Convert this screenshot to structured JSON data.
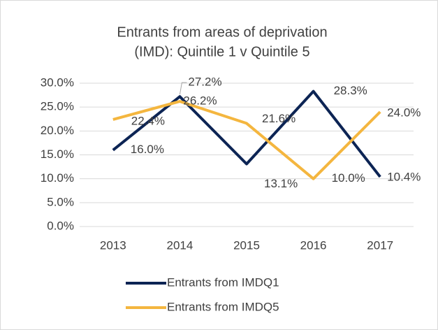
{
  "chart_data": {
    "type": "line",
    "title": [
      "Entrants from areas of deprivation",
      "(IMD): Quintile 1 v Quintile 5"
    ],
    "categories": [
      "2013",
      "2014",
      "2015",
      "2016",
      "2017"
    ],
    "series": [
      {
        "name": "Entrants from IMDQ1",
        "color": "#0c2454",
        "values": [
          16.0,
          27.2,
          13.1,
          28.3,
          10.4
        ],
        "value_labels": [
          "16.0%",
          "27.2%",
          "13.1%",
          "28.3%",
          "10.4%"
        ]
      },
      {
        "name": "Entrants from IMDQ5",
        "color": "#f4b63f",
        "values": [
          22.4,
          26.2,
          21.6,
          10.0,
          24.0
        ],
        "value_labels": [
          "22.4%",
          "26.2%",
          "21.6%",
          "10.0%",
          "24.0%"
        ]
      }
    ],
    "ylim": [
      0,
      30
    ],
    "yticks": [
      {
        "value": 0,
        "label": "0.0%"
      },
      {
        "value": 5,
        "label": "5.0%"
      },
      {
        "value": 10,
        "label": "10.0%"
      },
      {
        "value": 15,
        "label": "15.0%"
      },
      {
        "value": 20,
        "label": "20.0%"
      },
      {
        "value": 25,
        "label": "25.0%"
      },
      {
        "value": 30,
        "label": "30.0%"
      }
    ],
    "grid": true,
    "legend": "bottom"
  }
}
